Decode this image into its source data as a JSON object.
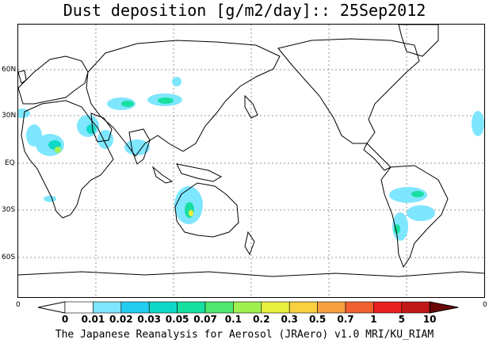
{
  "title": "Dust deposition [g/m2/day]:: 25Sep2012",
  "lat_labels": [
    "60N",
    "30N",
    "EQ",
    "30S",
    "60S"
  ],
  "edge_labels": {
    "left": "0",
    "right": "0"
  },
  "colorbar": {
    "labels": [
      "0",
      "0.01",
      "0.02",
      "0.03",
      "0.05",
      "0.07",
      "0.1",
      "0.2",
      "0.3",
      "0.5",
      "0.7",
      "1",
      "5",
      "10"
    ],
    "colors": [
      "#ffffff",
      "#7fe6ff",
      "#24ccf0",
      "#10d8c8",
      "#18e0a0",
      "#50e870",
      "#a0f050",
      "#e8f040",
      "#f8d040",
      "#f8a040",
      "#f06030",
      "#e82020",
      "#c01818",
      "#900e0e",
      "#6a0808"
    ]
  },
  "footer": "The Japanese Reanalysis for Aerosol (JRAero) v1.0 MRI/KU_RIAM"
}
